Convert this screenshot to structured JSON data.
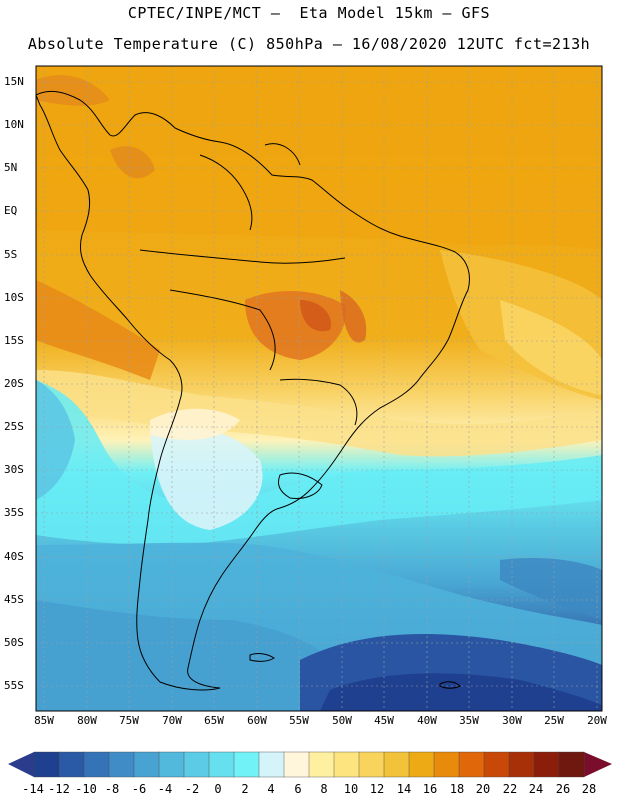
{
  "title_line1": "CPTEC/INPE/MCT –  Eta Model 15km – GFS",
  "title_line2": "Absolute Temperature (C) 850hPa – 16/08/2020 12UTC fct=213h",
  "lat_labels": [
    "15N",
    "10N",
    "5N",
    "EQ",
    "5S",
    "10S",
    "15S",
    "20S",
    "25S",
    "30S",
    "35S",
    "40S",
    "45S",
    "50S",
    "55S"
  ],
  "lon_labels": [
    "85W",
    "80W",
    "75W",
    "70W",
    "65W",
    "60W",
    "55W",
    "50W",
    "45W",
    "40W",
    "35W",
    "30W",
    "25W",
    "20W"
  ],
  "colorbar": {
    "labels": [
      "-14",
      "-12",
      "-10",
      "-8",
      "-6",
      "-4",
      "-2",
      "0",
      "2",
      "4",
      "6",
      "8",
      "10",
      "12",
      "14",
      "16",
      "18",
      "20",
      "22",
      "24",
      "26",
      "28"
    ],
    "colors": [
      "#1f3f8f",
      "#2a5aa6",
      "#3573b8",
      "#3f8cc6",
      "#49a3d2",
      "#52b8dc",
      "#5ccce6",
      "#66e0ee",
      "#70f2f6",
      "#d4f4fa",
      "#fff6dc",
      "#fff0a0",
      "#fde47e",
      "#f8d45c",
      "#f2c23a",
      "#eeaa14",
      "#e88a0c",
      "#e0680a",
      "#c84808",
      "#a83008",
      "#8a1e0a",
      "#6e1810"
    ],
    "low_color": "#2c3c8c",
    "high_color": "#7a0c2c"
  }
}
